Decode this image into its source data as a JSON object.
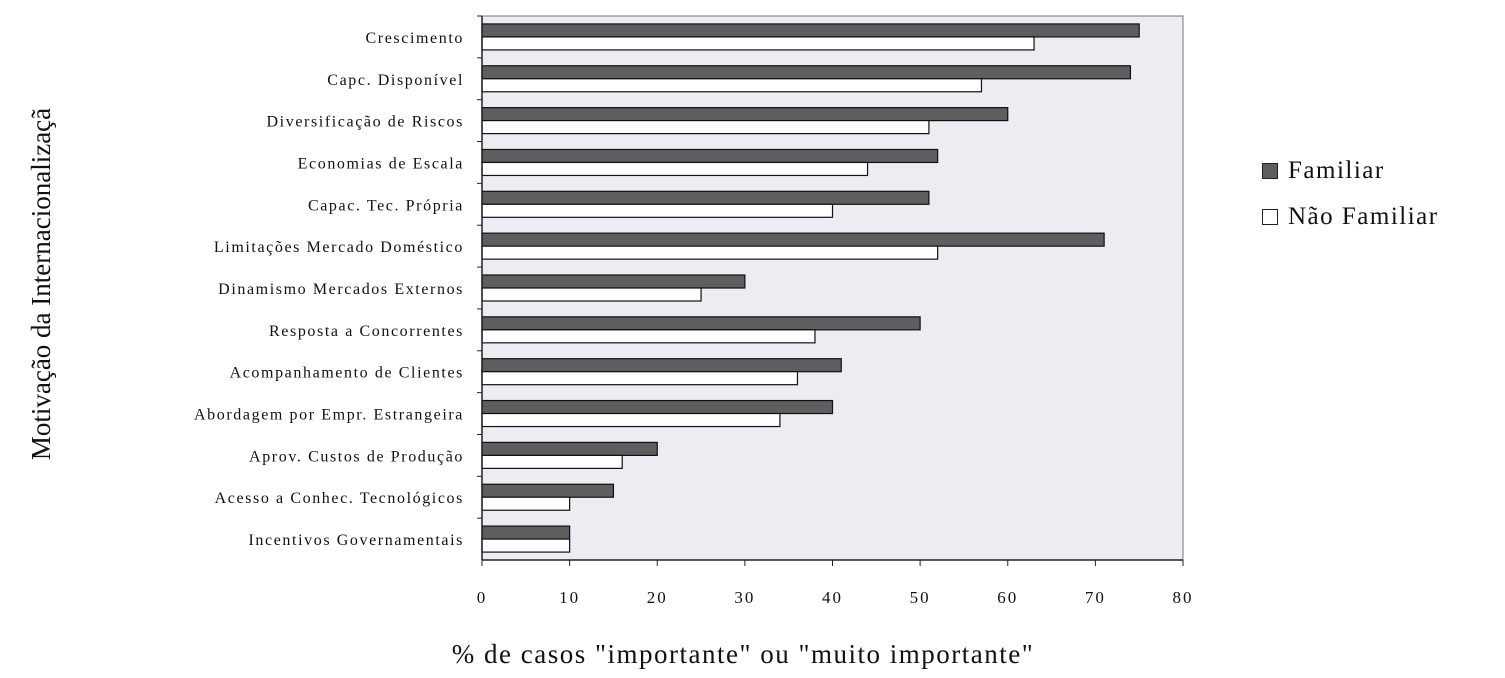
{
  "chart_data": {
    "type": "bar",
    "orientation": "horizontal",
    "categories": [
      "Crescimento",
      "Capc. Disponível",
      "Diversificação de Riscos",
      "Economias de Escala",
      "Capac. Tec. Própria",
      "Limitações Mercado Doméstico",
      "Dinamismo Mercados Externos",
      "Resposta a Concorrentes",
      "Acompanhamento de Clientes",
      "Abordagem por Empr. Estrangeira",
      "Aprov. Custos de Produção",
      "Acesso a Conhec. Tecnológicos",
      "Incentivos Governamentais"
    ],
    "series": [
      {
        "name": "Familiar",
        "values": [
          75,
          74,
          60,
          52,
          51,
          71,
          30,
          50,
          41,
          40,
          20,
          15,
          10
        ]
      },
      {
        "name": "Não Familiar",
        "values": [
          63,
          57,
          51,
          44,
          40,
          52,
          25,
          38,
          36,
          34,
          16,
          10,
          10
        ]
      }
    ],
    "xlabel": "% de casos \"importante\" ou \"muito importante\"",
    "ylabel": "Motivação da Internacionalizaçã",
    "xlim": [
      0,
      80
    ],
    "xticks": [
      "0",
      "10",
      "20",
      "30",
      "40",
      "50",
      "60",
      "70",
      "80"
    ],
    "legend_position": "right",
    "grid": false,
    "colors": {
      "familiar": "#5e5e5e",
      "nao_familiar": "#ffffff",
      "plot_bg": "#eeecf3"
    }
  }
}
